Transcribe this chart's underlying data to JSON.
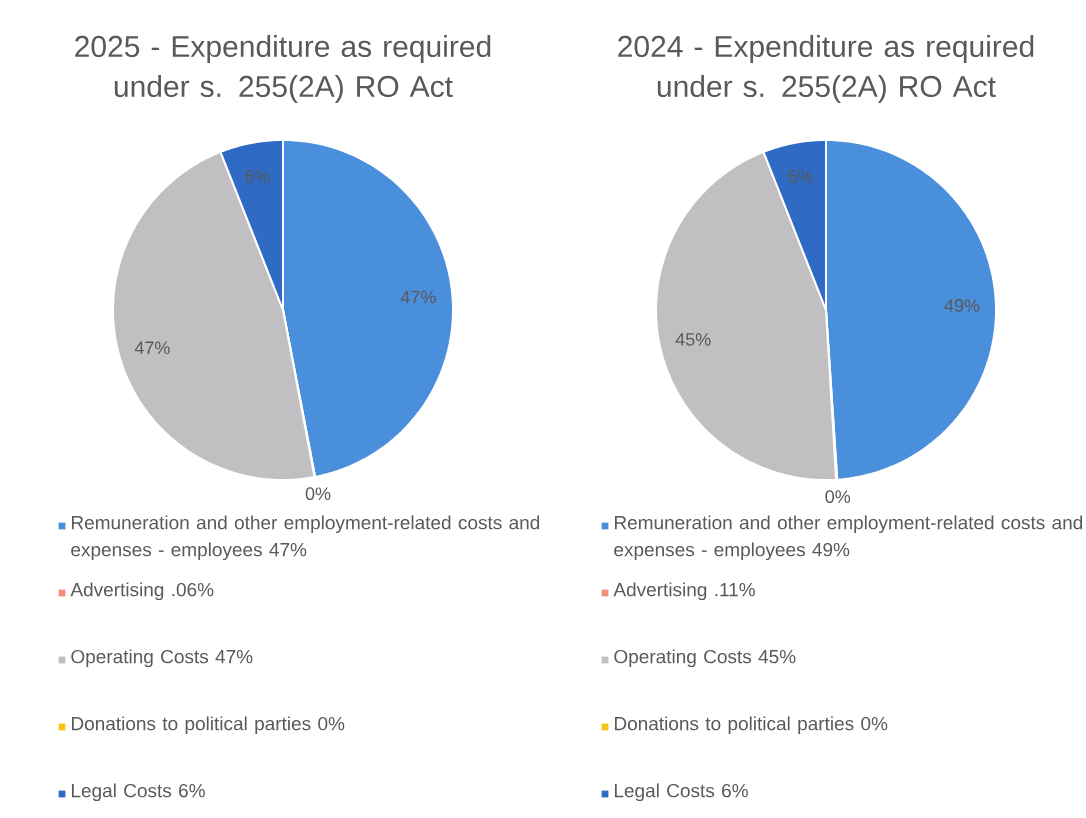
{
  "chart_data": [
    {
      "type": "pie",
      "title": "2025 - Expenditure as required under s. 255(2A) RO Act",
      "categories": [
        "Remuneration and other employment-related costs and expenses - employees   47%",
        "Advertising  .06%",
        "Operating Costs  47%",
        "Donations to political parties  0%",
        "Legal Costs  6%"
      ],
      "values": [
        47,
        0.06,
        47,
        0,
        6
      ],
      "colors": [
        "#4a8fdc",
        "#f4907a",
        "#c2bfc2",
        "#f5c518",
        "#2f6bc4"
      ],
      "value_labels": [
        "47%",
        "0%",
        "47%",
        null,
        "6%"
      ],
      "legend": "bottom"
    },
    {
      "type": "pie",
      "title": "2024 - Expenditure as required under s. 255(2A) RO Act",
      "categories": [
        "Remuneration and other employment-related costs and expenses - employees   49%",
        "Advertising  .11%",
        "Operating Costs  45%",
        "Donations to political parties  0%",
        "Legal Costs  6%"
      ],
      "values": [
        49,
        0.11,
        45,
        0,
        6
      ],
      "colors": [
        "#4a8fdc",
        "#f4907a",
        "#c2bfc2",
        "#f5c518",
        "#2f6bc4"
      ],
      "value_labels": [
        "49%",
        "0%",
        "45%",
        null,
        "6%"
      ],
      "legend": "bottom"
    }
  ]
}
